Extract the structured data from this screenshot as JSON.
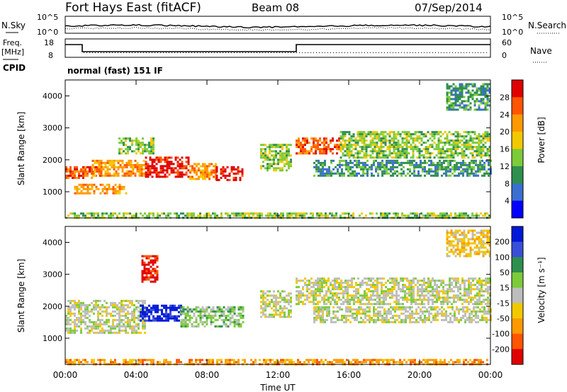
{
  "header": {
    "station": "Fort Hays East (fitACF)",
    "beam": "Beam 08",
    "date": "07/Sep/2014"
  },
  "noise_panel": {
    "left_label": "N.Sky",
    "right_label": "N.Search",
    "left_ticks": [
      "10^5",
      "10^0"
    ],
    "right_ticks": [
      "10^5",
      "10^0"
    ]
  },
  "freq_panel": {
    "left_label_1": "Freq.",
    "left_label_2": "[MHz]",
    "right_label": "Nave",
    "left_ticks": [
      "18",
      "8"
    ],
    "right_ticks": [
      "60",
      "0"
    ],
    "cpid_label": "CPID",
    "cpid_text": "normal (fast) 151 IF"
  },
  "chart_data": [
    {
      "type": "heatmap",
      "name": "power",
      "xlabel": "",
      "ylabel": "Slant Range [km]",
      "x_ticks": [
        "00:00",
        "04:00",
        "08:00",
        "12:00",
        "16:00",
        "20:00",
        "00:00"
      ],
      "y_ticks": [
        1000,
        2000,
        3000,
        4000
      ],
      "xlim": [
        0,
        24
      ],
      "ylim": [
        180,
        4500
      ],
      "colorbar": {
        "label": "Power [dB]",
        "ticks": [
          "28",
          "24",
          "20",
          "16",
          "12",
          "8",
          "4"
        ],
        "colors": [
          "#e00000",
          "#ff5500",
          "#ff9900",
          "#f2c800",
          "#7ccb3a",
          "#2f8f4e",
          "#3a6fd0",
          "#0000ff"
        ]
      },
      "echo_regions": [
        {
          "t0": 0.0,
          "t1": 2.0,
          "r0": 1450,
          "r1": 1800,
          "level": 6
        },
        {
          "t0": 0.5,
          "t1": 3.5,
          "r0": 950,
          "r1": 1250,
          "level": 5
        },
        {
          "t0": 1.5,
          "t1": 4.5,
          "r0": 1500,
          "r1": 2000,
          "level": 5
        },
        {
          "t0": 3.0,
          "t1": 5.0,
          "r0": 2200,
          "r1": 2700,
          "level": 3
        },
        {
          "t0": 4.5,
          "t1": 7.0,
          "r0": 1500,
          "r1": 2100,
          "level": 7
        },
        {
          "t0": 7.0,
          "t1": 8.5,
          "r0": 1400,
          "r1": 1900,
          "level": 5
        },
        {
          "t0": 8.5,
          "t1": 10.0,
          "r0": 1400,
          "r1": 1800,
          "level": 7
        },
        {
          "t0": 11.0,
          "t1": 12.8,
          "r0": 1700,
          "r1": 2500,
          "level": 3
        },
        {
          "t0": 13.0,
          "t1": 15.5,
          "r0": 2200,
          "r1": 2700,
          "level": 6
        },
        {
          "t0": 15.5,
          "t1": 24.0,
          "r0": 2100,
          "r1": 2900,
          "level": 3
        },
        {
          "t0": 14.0,
          "t1": 24.0,
          "r0": 1500,
          "r1": 2000,
          "level": 2
        },
        {
          "t0": 21.5,
          "t1": 24.0,
          "r0": 3600,
          "r1": 4400,
          "level": 2
        },
        {
          "t0": 0.0,
          "t1": 24.0,
          "r0": 200,
          "r1": 350,
          "level": 3
        }
      ]
    },
    {
      "type": "heatmap",
      "name": "velocity",
      "xlabel": "Time UT",
      "ylabel": "Slant Range [km]",
      "x_ticks": [
        "00:00",
        "04:00",
        "08:00",
        "12:00",
        "16:00",
        "20:00",
        "00:00"
      ],
      "y_ticks": [
        1000,
        2000,
        3000,
        4000
      ],
      "xlim": [
        0,
        24
      ],
      "ylim": [
        180,
        4500
      ],
      "colorbar": {
        "label": "Velocity [m s⁻¹]",
        "ticks": [
          "200",
          "100",
          "50",
          "15",
          "-15",
          "-50",
          "-100",
          "-200"
        ],
        "colors": [
          "#0018d8",
          "#3a4fd8",
          "#2f8f4e",
          "#7ccb3a",
          "#bdbdbd",
          "#f2c800",
          "#ff9900",
          "#ff5500",
          "#e00000"
        ]
      },
      "echo_regions": [
        {
          "t0": 0.0,
          "t1": 4.5,
          "r0": 1200,
          "r1": 2200,
          "level": 4
        },
        {
          "t0": 4.2,
          "t1": 6.5,
          "r0": 1550,
          "r1": 2050,
          "level": 0
        },
        {
          "t0": 6.5,
          "t1": 10.0,
          "r0": 1400,
          "r1": 2000,
          "level": 3
        },
        {
          "t0": 4.3,
          "t1": 5.2,
          "r0": 2800,
          "r1": 3600,
          "level": 8
        },
        {
          "t0": 11.0,
          "t1": 12.8,
          "r0": 1700,
          "r1": 2500,
          "level": 4
        },
        {
          "t0": 13.0,
          "t1": 24.0,
          "r0": 2100,
          "r1": 2900,
          "level": 4
        },
        {
          "t0": 14.0,
          "t1": 24.0,
          "r0": 1500,
          "r1": 2000,
          "level": 4
        },
        {
          "t0": 21.5,
          "t1": 24.0,
          "r0": 3600,
          "r1": 4400,
          "level": 5
        },
        {
          "t0": 0.0,
          "t1": 24.0,
          "r0": 200,
          "r1": 350,
          "level": 6
        }
      ]
    }
  ]
}
